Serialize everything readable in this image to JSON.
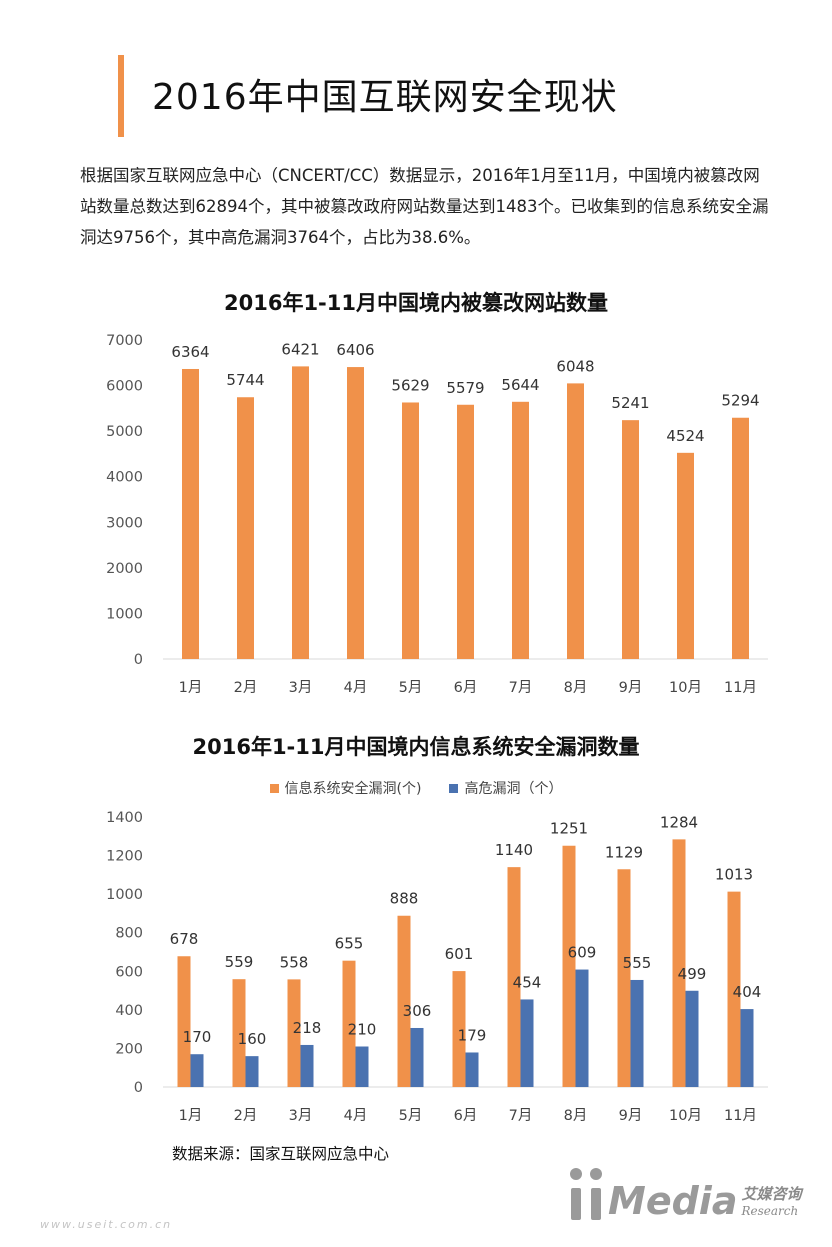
{
  "header": {
    "title": "2016年中国互联网安全现状"
  },
  "intro": {
    "text": "根据国家互联网应急中心（CNCERT/CC）数据显示，2016年1月至11月，中国境内被篡改网站数量总数达到62894个，其中被篡改政府网站数量达到1483个。已收集到的信息系统安全漏洞达9756个，其中高危漏洞3764个，占比为38.6%。"
  },
  "chart_data": [
    {
      "type": "bar",
      "title": "2016年1-11月中国境内被篡改网站数量",
      "categories": [
        "1月",
        "2月",
        "3月",
        "4月",
        "5月",
        "6月",
        "7月",
        "8月",
        "9月",
        "10月",
        "11月"
      ],
      "series": [
        {
          "values": [
            6364,
            5744,
            6421,
            6406,
            5629,
            5579,
            5644,
            6048,
            5241,
            4524,
            5294
          ],
          "color": "#f0914a"
        }
      ],
      "ylim": [
        0,
        7000
      ],
      "yticks": [
        0,
        1000,
        2000,
        3000,
        4000,
        5000,
        6000,
        7000
      ],
      "grid": false,
      "data_labels": true
    },
    {
      "type": "bar",
      "title": "2016年1-11月中国境内信息系统安全漏洞数量",
      "categories": [
        "1月",
        "2月",
        "3月",
        "4月",
        "5月",
        "6月",
        "7月",
        "8月",
        "9月",
        "10月",
        "11月"
      ],
      "series": [
        {
          "name": "信息系统安全漏洞(个)",
          "values": [
            678,
            559,
            558,
            655,
            888,
            601,
            1140,
            1251,
            1129,
            1284,
            1013
          ],
          "color": "#f0914a"
        },
        {
          "name": "高危漏洞（个）",
          "values": [
            170,
            160,
            218,
            210,
            306,
            179,
            454,
            609,
            555,
            499,
            404
          ],
          "color": "#4a72b0"
        }
      ],
      "ylim": [
        0,
        1400
      ],
      "yticks": [
        0,
        200,
        400,
        600,
        800,
        1000,
        1200,
        1400
      ],
      "grid": false,
      "legend": "top-center",
      "data_labels": true
    }
  ],
  "footer": {
    "source": "数据来源：国家互联网应急中心",
    "logo_word": "Media",
    "logo_cn": "艾媒咨询",
    "logo_en": "Research",
    "url": "www.useit.com.cn"
  },
  "colors": {
    "accent": "#f0914a",
    "secondary": "#4a72b0"
  }
}
